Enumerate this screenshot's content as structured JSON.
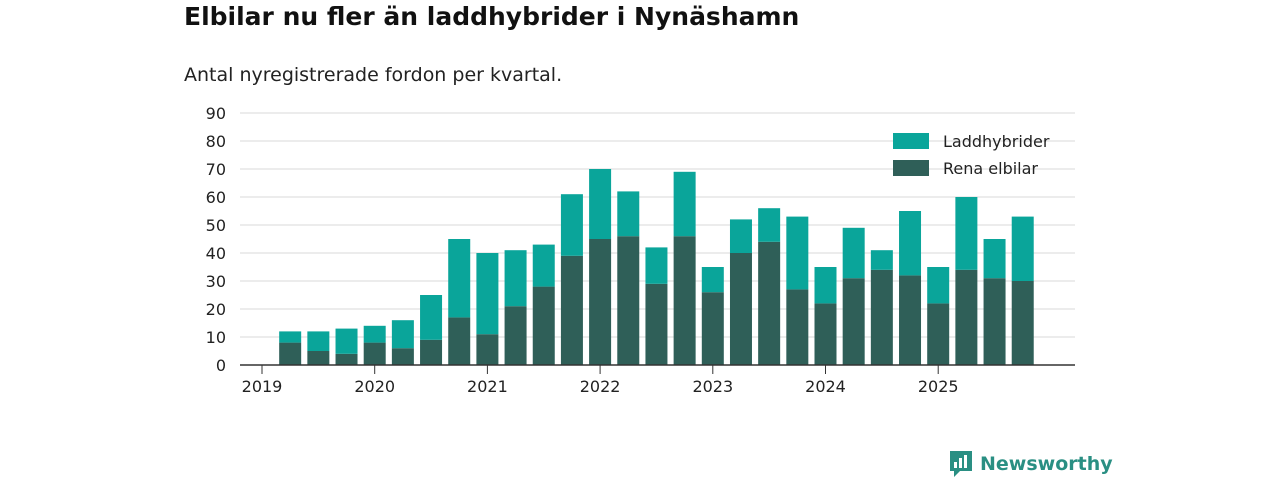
{
  "header": {
    "title": "Elbilar nu fler än laddhybrider i Nynäshamn",
    "subtitle": "Antal nyregistrerade fordon per kvartal."
  },
  "brand": {
    "name": "Newsworthy",
    "icon": "newsworthy-logo-icon"
  },
  "colors": {
    "laddhybrider": "#0aa59a",
    "rena_elbilar": "#2f5f58",
    "grid": "#d9d9d9",
    "axis": "#333333"
  },
  "chart_data": {
    "type": "bar",
    "stacked": true,
    "title": "Elbilar nu fler än laddhybrider i Nynäshamn",
    "subtitle": "Antal nyregistrerade fordon per kvartal.",
    "xlabel": "",
    "ylabel": "",
    "ylim": [
      0,
      90
    ],
    "yticks": [
      0,
      10,
      20,
      30,
      40,
      50,
      60,
      70,
      80,
      90
    ],
    "year_ticks": [
      "2019",
      "2020",
      "2021",
      "2022",
      "2023",
      "2024",
      "2025"
    ],
    "grid": true,
    "legend_position": "top-right",
    "categories": [
      "2019 Q2",
      "2019 Q3",
      "2019 Q4",
      "2020 Q1",
      "2020 Q2",
      "2020 Q3",
      "2020 Q4",
      "2021 Q1",
      "2021 Q2",
      "2021 Q3",
      "2021 Q4",
      "2022 Q1",
      "2022 Q2",
      "2022 Q3",
      "2022 Q4",
      "2023 Q1",
      "2023 Q2",
      "2023 Q3",
      "2023 Q4",
      "2024 Q1",
      "2024 Q2",
      "2024 Q3",
      "2024 Q4",
      "2025 Q1",
      "2025 Q2",
      "2025 Q3",
      "2025 Q4"
    ],
    "series": [
      {
        "name": "Rena elbilar",
        "color": "#2f5f58",
        "values": [
          8,
          5,
          4,
          8,
          6,
          9,
          17,
          11,
          21,
          28,
          39,
          45,
          46,
          29,
          46,
          26,
          40,
          44,
          27,
          22,
          31,
          34,
          32,
          22,
          34,
          31,
          30
        ]
      },
      {
        "name": "Laddhybrider",
        "color": "#0aa59a",
        "values": [
          4,
          7,
          9,
          6,
          10,
          16,
          28,
          29,
          20,
          15,
          22,
          25,
          16,
          13,
          23,
          9,
          12,
          12,
          26,
          13,
          18,
          7,
          23,
          13,
          26,
          14,
          23
        ]
      }
    ],
    "legend": [
      "Laddhybrider",
      "Rena elbilar"
    ]
  }
}
